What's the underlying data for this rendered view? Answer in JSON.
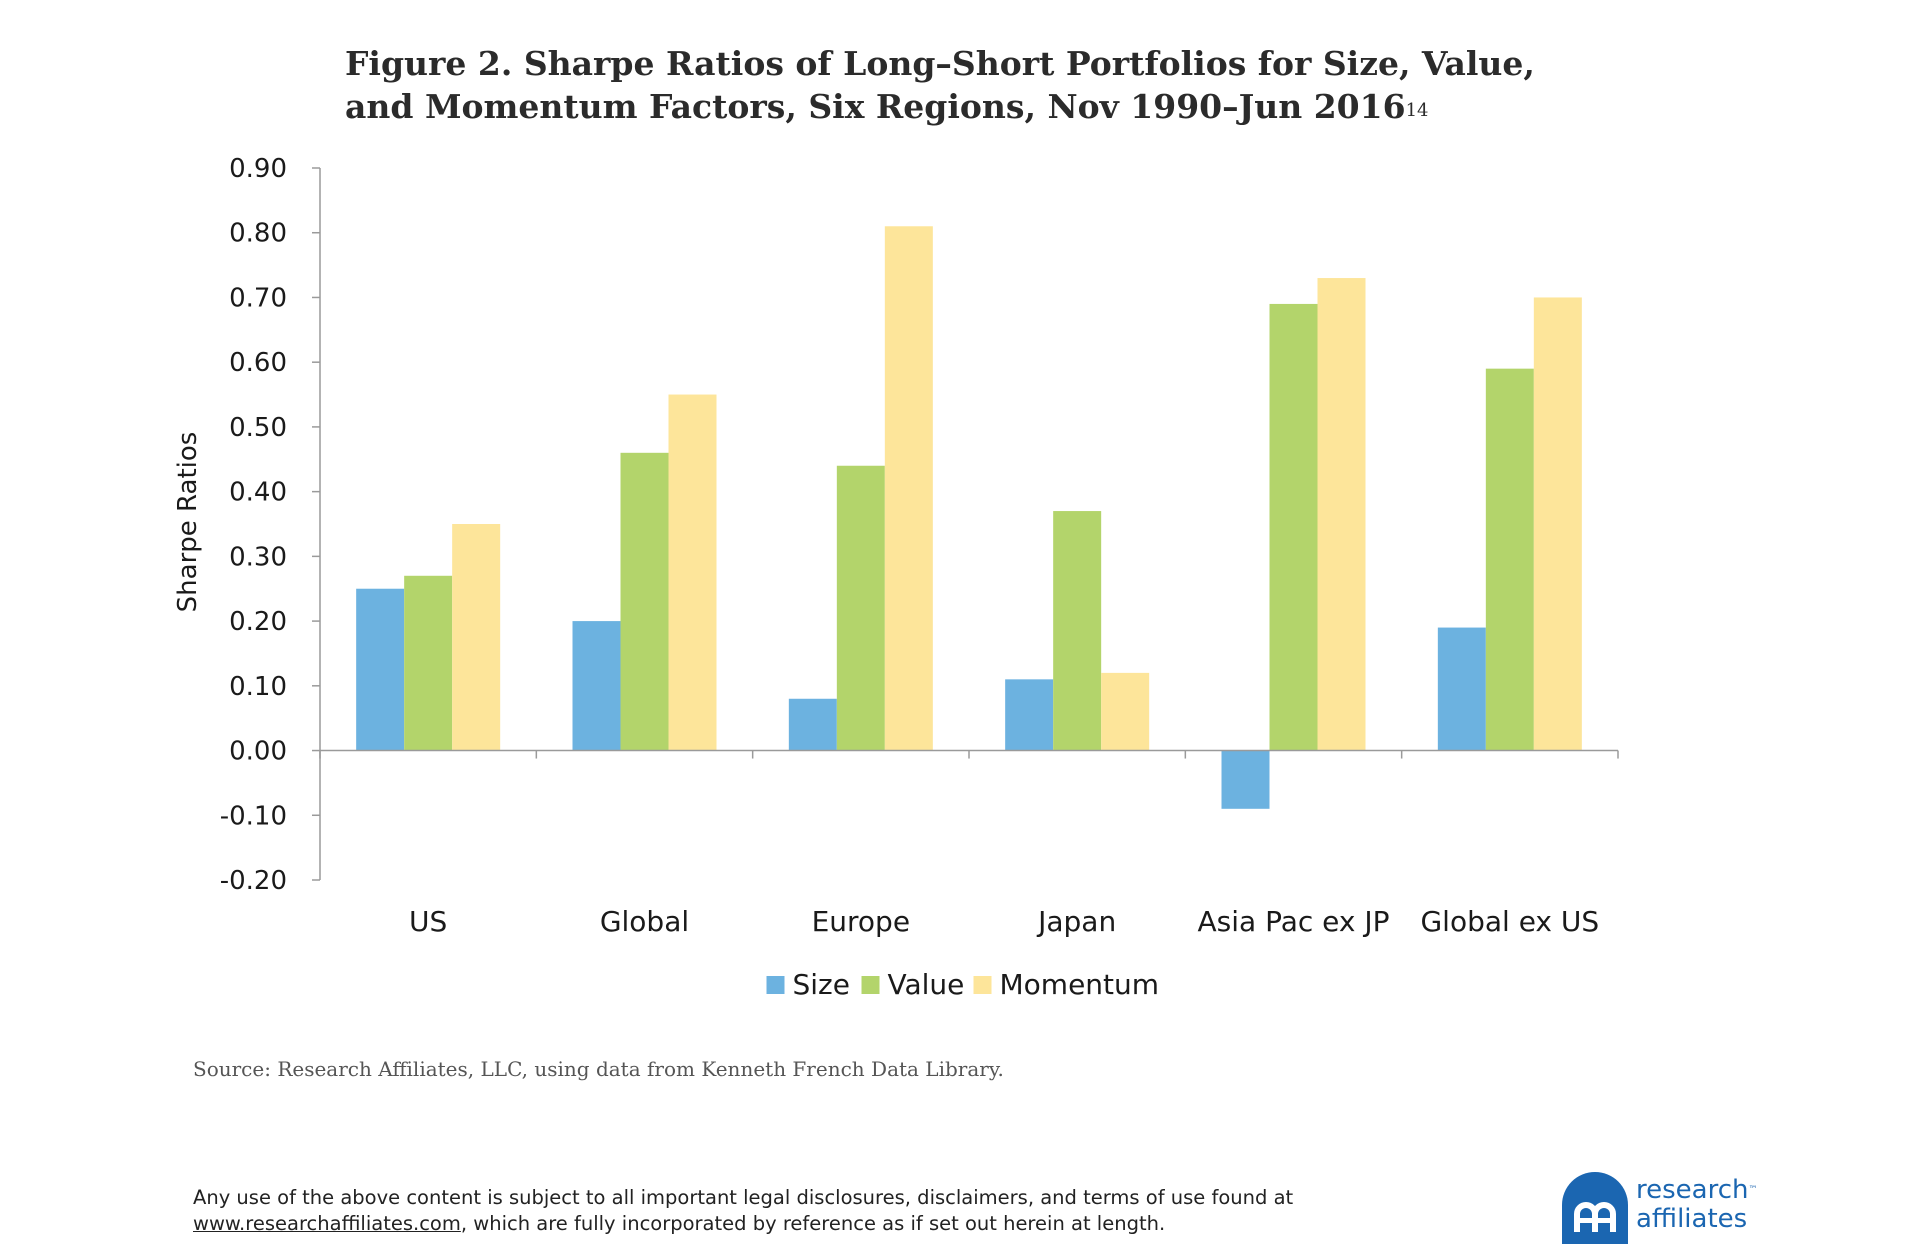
{
  "title": {
    "line1": "Figure 2. Sharpe Ratios of Long–Short Portfolios for Size, Value,",
    "line2": "and Momentum Factors, Six Regions, Nov 1990–Jun 2016",
    "footnote_ref": "14"
  },
  "chart_data": {
    "type": "bar",
    "categories": [
      "US",
      "Global",
      "Europe",
      "Japan",
      "Asia Pac ex JP",
      "Global ex US"
    ],
    "series": [
      {
        "name": "Size",
        "color": "#6cb2e0",
        "values": [
          0.25,
          0.2,
          0.08,
          0.11,
          -0.09,
          0.19
        ]
      },
      {
        "name": "Value",
        "color": "#b3d46b",
        "values": [
          0.27,
          0.46,
          0.44,
          0.37,
          0.69,
          0.59
        ]
      },
      {
        "name": "Momentum",
        "color": "#fde59a",
        "values": [
          0.35,
          0.55,
          0.81,
          0.12,
          0.73,
          0.7
        ]
      }
    ],
    "ylabel": "Sharpe Ratios",
    "xlabel": "",
    "ylim": [
      -0.2,
      0.9
    ],
    "yticks": [
      "0.90",
      "0.80",
      "0.70",
      "0.60",
      "0.50",
      "0.40",
      "0.30",
      "0.20",
      "0.10",
      "0.00",
      "-0.10",
      "-0.20"
    ],
    "legend_position": "bottom-center",
    "grid": false
  },
  "source": "Source:  Research Affiliates, LLC, using data from Kenneth French Data Library.",
  "disclaimer": {
    "line1": "Any use of the above content is subject to all important legal disclosures, disclaimers, and terms of use found at",
    "link": "www.researchaffiliates.com",
    "line2_rest": ", which are fully incorporated by reference as if set out herein at length."
  },
  "logo": {
    "line1": "research",
    "tm": "™",
    "line2": "affiliates"
  }
}
